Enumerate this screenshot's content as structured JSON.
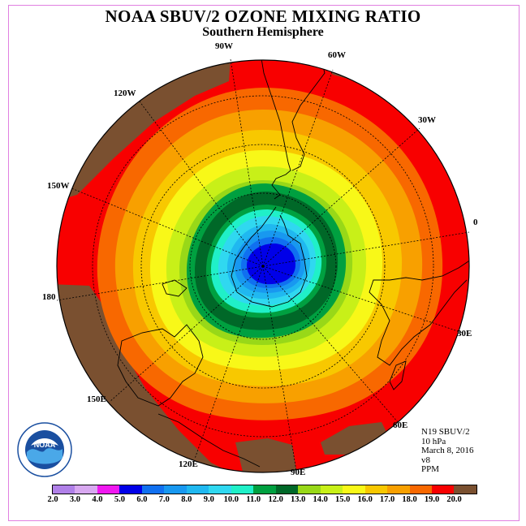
{
  "title": "NOAA SBUV/2 OZONE MIXING RATIO",
  "subtitle": "Southern Hemisphere",
  "longitude_labels": {
    "l90w": "90W",
    "l60w": "60W",
    "l30w": "30W",
    "l120w": "120W",
    "l150w": "150W",
    "l0": "0",
    "l180": "180",
    "l30e": "30E",
    "l150e": "150E",
    "l60e": "60E",
    "l120e": "120E",
    "l90e": "90E"
  },
  "info": {
    "satellite": "N19 SBUV/2",
    "level": "10 hPa",
    "date": "March 8, 2016",
    "version": "v8",
    "units": "PPM"
  },
  "logo": {
    "text": "NOAA"
  },
  "colorbar": {
    "ticks": [
      "2.0",
      "3.0",
      "4.0",
      "5.0",
      "6.0",
      "7.0",
      "8.0",
      "9.0",
      "10.0",
      "11.0",
      "12.0",
      "13.0",
      "14.0",
      "15.0",
      "16.0",
      "17.0",
      "18.0",
      "19.0",
      "20.0"
    ],
    "colors": [
      "#b080e8",
      "#d8a8f0",
      "#f018f0",
      "#0000e8",
      "#1070f0",
      "#1898f0",
      "#20b8f0",
      "#30d8f0",
      "#20f0c8",
      "#00a040",
      "#006828",
      "#98d818",
      "#c8f018",
      "#f8f818",
      "#f8c800",
      "#f8a000",
      "#f86800",
      "#f80000",
      "#7a5030"
    ]
  },
  "map_colors": {
    "brown": "#7a5030",
    "red": "#f80000",
    "orange_red": "#f86800",
    "orange": "#f8a000",
    "amber": "#f8c800",
    "yellow": "#f8f818",
    "lime": "#c8f018",
    "yellow_green": "#98d818",
    "dark_green": "#006828",
    "green": "#00a040",
    "aqua": "#20f0c8",
    "cyan": "#30d8f0",
    "sky": "#20b8f0",
    "blue_light": "#1898f0",
    "blue": "#1070f0",
    "deep_blue": "#0000e8"
  }
}
